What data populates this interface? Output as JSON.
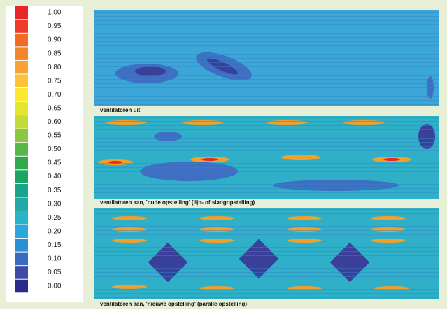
{
  "legend": {
    "labels": [
      "1.00",
      "0.95",
      "0.90",
      "0.85",
      "0.80",
      "0.75",
      "0.70",
      "0.65",
      "0.60",
      "0.55",
      "0.50",
      "0.45",
      "0.40",
      "0.35",
      "0.30",
      "0.25",
      "0.20",
      "0.15",
      "0.10",
      "0.05",
      "0.00"
    ],
    "colors": [
      "#e8262b",
      "#ee3a26",
      "#f26a24",
      "#f3862a",
      "#f7a336",
      "#fbc23a",
      "#fde82d",
      "#e3e52f",
      "#c2da3a",
      "#8dc641",
      "#56b848",
      "#2eaa4e",
      "#1ba563",
      "#19a38a",
      "#22a9a6",
      "#29b3c9",
      "#2aa7dc",
      "#2b8fd4",
      "#3a6bc0",
      "#3c4aa6",
      "#2e2a8a"
    ]
  },
  "panels": [
    {
      "caption": "ventilatoren uit"
    },
    {
      "caption": "ventilatoren aan, 'oude opstelling' (lijn- of slangopstelling)"
    },
    {
      "caption": "ventilatoren aan, 'nieuwe opstelling'  (parallelopstelling)"
    }
  ]
}
